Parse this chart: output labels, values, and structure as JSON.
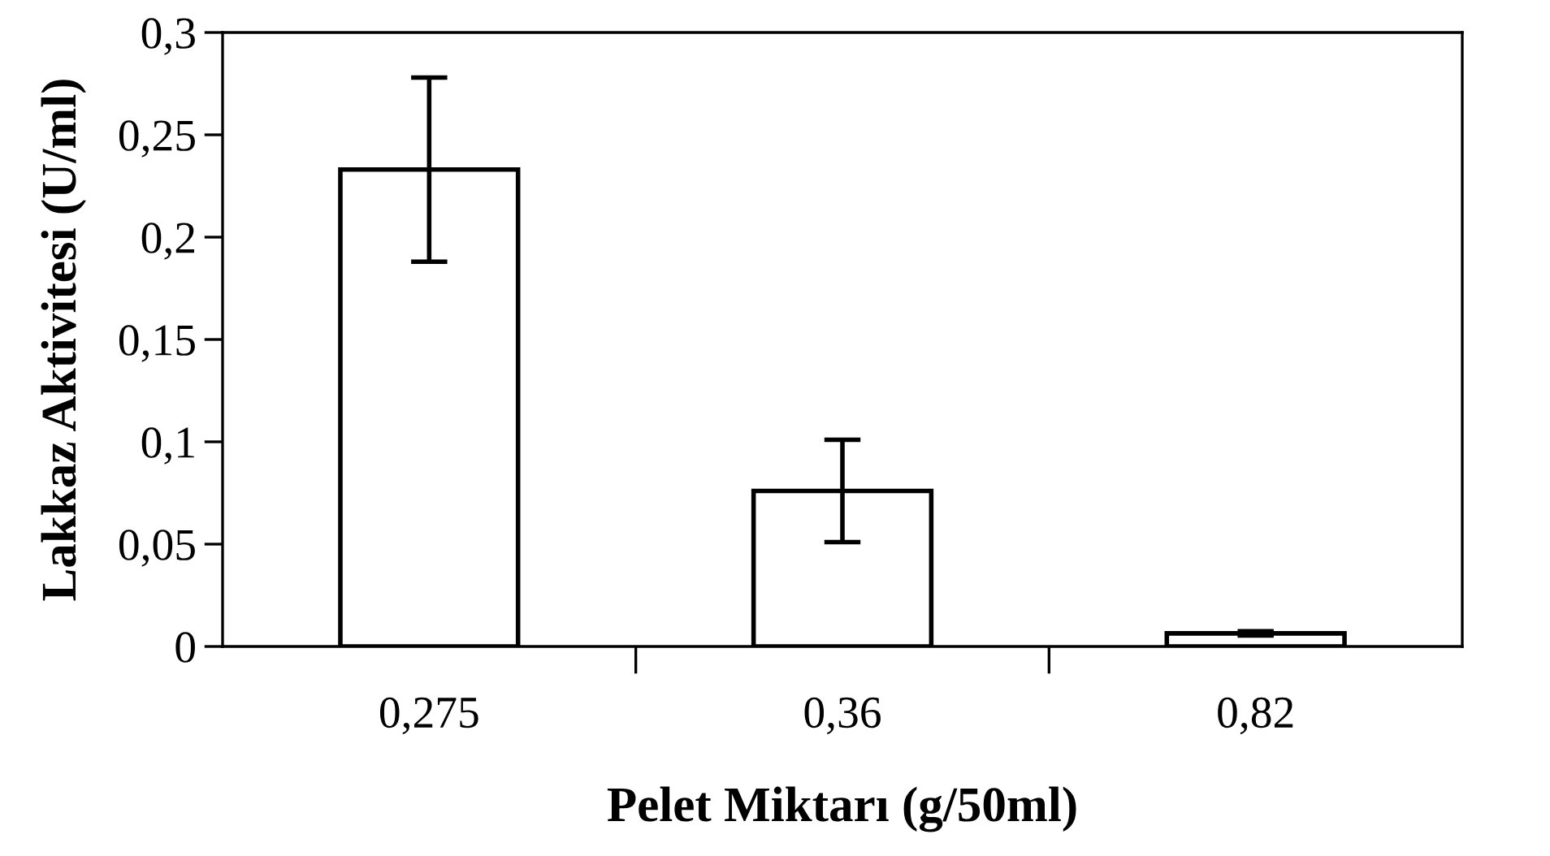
{
  "chart_data": {
    "type": "bar",
    "xlabel": "Pelet Miktarı (g/50ml)",
    "ylabel": "Lakkaz Aktivitesi (U/ml)",
    "categories": [
      "0,275",
      "0,36",
      "0,82"
    ],
    "values": [
      0.233,
      0.076,
      0.0064
    ],
    "errors": [
      0.045,
      0.025,
      0.001
    ],
    "color": "#ffffff",
    "ylim": [
      0,
      0.3
    ],
    "yticks": [
      {
        "value": 0,
        "label": "0"
      },
      {
        "value": 0.05,
        "label": "0,05"
      },
      {
        "value": 0.1,
        "label": "0,1"
      },
      {
        "value": 0.15,
        "label": "0,15"
      },
      {
        "value": 0.2,
        "label": "0,2"
      },
      {
        "value": 0.25,
        "label": "0,25"
      },
      {
        "value": 0.3,
        "label": "0,3"
      }
    ],
    "grid": false,
    "legend": false
  }
}
